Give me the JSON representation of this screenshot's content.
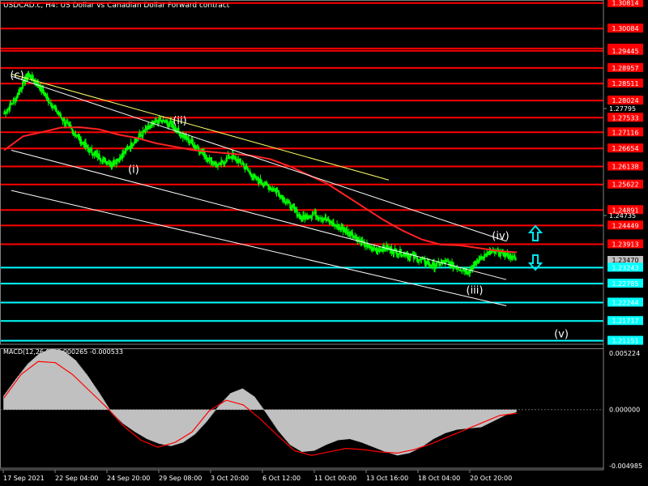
{
  "title": "USDCAD.c, H4:  US Dollar vs Canadian Dollar Forward contract",
  "chart_data": {
    "type": "candlestick",
    "symbol": "USDCAD.c",
    "timeframe": "H4",
    "x_labels": [
      "17 Sep 2021",
      "22 Sep 04:00",
      "24 Sep 20:00",
      "29 Sep 08:00",
      "3 Oct 20:00",
      "6 Oct 12:00",
      "11 Oct 00:00",
      "13 Oct 16:00",
      "18 Oct 04:00",
      "20 Oct 20:00"
    ],
    "price_axis_ticks": [
      "1.27795",
      "1.24735"
    ],
    "current_price": "1.23470",
    "ylim": [
      1.2105,
      1.309
    ],
    "resistance_levels": [
      "1.30814",
      "1.30084",
      "1.29511",
      "1.29445",
      "1.28957",
      "1.28511",
      "1.28024",
      "1.27533",
      "1.27116",
      "1.26654",
      "1.26138",
      "1.25622",
      "1.24891",
      "1.24449",
      "1.23913"
    ],
    "support_levels": [
      "1.23243",
      "1.22785",
      "1.22244",
      "1.21717",
      "1.21151"
    ],
    "wave_labels": [
      {
        "label": "(c)",
        "price": 1.2865
      },
      {
        "label": "(i)",
        "price": 1.2595
      },
      {
        "label": "(ii)",
        "price": 1.2735
      },
      {
        "label": "(iii)",
        "price": 1.225
      },
      {
        "label": "(iv)",
        "price": 1.2405
      },
      {
        "label": "(v)",
        "price": 1.2125
      }
    ],
    "price_path": [
      1.2765,
      1.281,
      1.288,
      1.284,
      1.279,
      1.2745,
      1.2705,
      1.2665,
      1.264,
      1.262,
      1.265,
      1.269,
      1.272,
      1.2745,
      1.2735,
      1.27,
      1.2675,
      1.264,
      1.2615,
      1.2645,
      1.262,
      1.258,
      1.256,
      1.254,
      1.25,
      1.2465,
      1.248,
      1.246,
      1.244,
      1.2425,
      1.2395,
      1.2375,
      1.238,
      1.237,
      1.236,
      1.2345,
      1.233,
      1.234,
      1.2325,
      1.2315,
      1.2355,
      1.237,
      1.2362,
      1.2347
    ],
    "moving_average": [
      1.266,
      1.27,
      1.2712,
      1.2725,
      1.2726,
      1.272,
      1.2705,
      1.2695,
      1.268,
      1.267,
      1.266,
      1.2655,
      1.265,
      1.2645,
      1.2635,
      1.2615,
      1.259,
      1.2565,
      1.253,
      1.2495,
      1.246,
      1.243,
      1.2405,
      1.239,
      1.2388,
      1.238,
      1.2372,
      1.2368
    ],
    "indicator": {
      "label": "MACD(12,26,9) -0.000265 -0.000533",
      "name": "MACD(12,26,9)",
      "main": -0.000265,
      "signal": -0.000533,
      "ticks": [
        "0.005224",
        "0.000000",
        "-0.004985"
      ],
      "ylim": [
        -0.004985,
        0.005224
      ],
      "histogram": [
        0.0012,
        0.0026,
        0.0039,
        0.0048,
        0.0052,
        0.005,
        0.0042,
        0.0029,
        0.0014,
        -0.0002,
        -0.0012,
        -0.0019,
        -0.0025,
        -0.0029,
        -0.0031,
        -0.0028,
        -0.0021,
        -0.001,
        0.0003,
        0.0014,
        0.0018,
        0.0011,
        -0.0003,
        -0.0018,
        -0.003,
        -0.0036,
        -0.0035,
        -0.003,
        -0.0026,
        -0.0025,
        -0.0028,
        -0.0032,
        -0.0036,
        -0.0039,
        -0.0037,
        -0.0032,
        -0.0025,
        -0.002,
        -0.0017,
        -0.0016,
        -0.0015,
        -0.001,
        -0.0005,
        -0.0002
      ],
      "signal_line": [
        0.001,
        0.003,
        0.0041,
        0.004,
        0.003,
        0.0016,
        0.0002,
        -0.0014,
        -0.0026,
        -0.0032,
        -0.0028,
        -0.0019,
        -0.0001,
        0.0008,
        0.0004,
        -0.0008,
        -0.0022,
        -0.0035,
        -0.0039,
        -0.0036,
        -0.0033,
        -0.0034,
        -0.0036,
        -0.0037,
        -0.0034,
        -0.0029,
        -0.0023,
        -0.0017,
        -0.0011,
        -0.0005,
        -0.0003
      ]
    }
  },
  "colors": {
    "background": "#000000",
    "candle": "#00ff00",
    "resistance_line": "#ff0000",
    "support_line": "#00ffff",
    "moving_average": "#ff2222",
    "trend_line": "#ffff66",
    "channel_line": "#ffffff",
    "current_price_tag": "#c0c0c0",
    "arrow": "#00e5ee",
    "macd_histogram": "#c0c0c0",
    "macd_signal": "#ff0000"
  }
}
